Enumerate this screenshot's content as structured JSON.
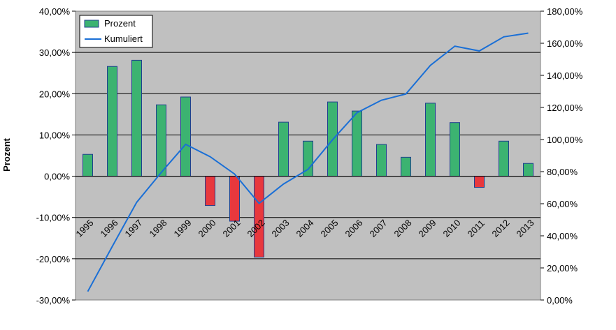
{
  "chart_data": {
    "type": "bar",
    "ylabel": "Prozent",
    "categories": [
      "1995",
      "1996",
      "1997",
      "1998",
      "1999",
      "2000",
      "2001",
      "2002",
      "2003",
      "2004",
      "2005",
      "2006",
      "2007",
      "2008",
      "2009",
      "2010",
      "2011",
      "2012",
      "2013"
    ],
    "series": [
      {
        "name": "Prozent",
        "type": "bar",
        "axis": "left",
        "values": [
          5.3,
          26.6,
          28.1,
          17.3,
          19.2,
          -7.1,
          -10.9,
          -19.6,
          13.1,
          8.5,
          18.0,
          15.8,
          7.7,
          4.6,
          17.7,
          13.0,
          -2.7,
          8.5,
          3.1
        ]
      },
      {
        "name": "Kumuliert",
        "type": "line",
        "axis": "right",
        "values": [
          5.3,
          33.3,
          60.9,
          79.4,
          97.0,
          89.3,
          78.5,
          60.2,
          72.3,
          81.4,
          99.8,
          116.7,
          124.5,
          128.4,
          146.2,
          158.2,
          155.2,
          164.0,
          166.3
        ]
      }
    ],
    "left_axis": {
      "min": -30,
      "max": 40,
      "step": 10,
      "tick_labels": [
        "-30,00%",
        "-20,00%",
        "-10,00%",
        "0,00%",
        "10,00%",
        "20,00%",
        "30,00%",
        "40,00%"
      ]
    },
    "right_axis": {
      "min": 0,
      "max": 180,
      "step": 20,
      "tick_labels": [
        "0,00%",
        "20,00%",
        "40,00%",
        "60,00%",
        "80,00%",
        "100,00%",
        "120,00%",
        "140,00%",
        "160,00%",
        "180,00%"
      ]
    },
    "grid": true,
    "legend_position": "top-left",
    "legend": [
      "Prozent",
      "Kumuliert"
    ],
    "colors": {
      "plot_background": "#c0c0c0",
      "positive_bar": "#3cb371",
      "negative_bar": "#e8383d",
      "bar_border": "#1f3f8f",
      "line": "#1a6fd6",
      "gridline": "#000000"
    }
  }
}
